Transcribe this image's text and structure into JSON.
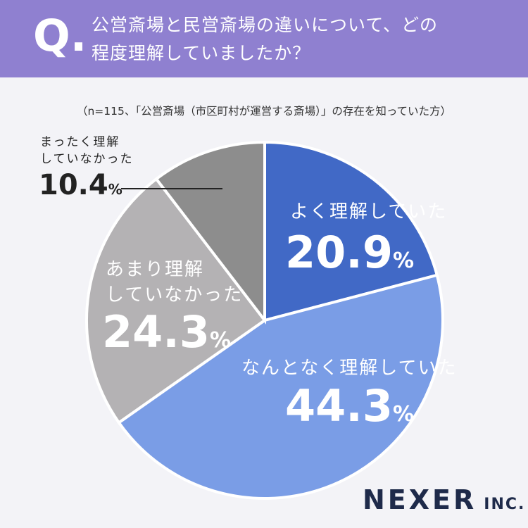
{
  "header": {
    "mark": "Q.",
    "question": "公営斎場と民営斎場の違いについて、どの\n程度理解していましたか？"
  },
  "chart_data": {
    "type": "pie",
    "subtitle": "（n=115、「公営斎場（市区町村が運営する斎場）」の存在を知っていた方）",
    "categories": [
      "よく理解していた",
      "なんとなく理解していた",
      "あまり理解\nしていなかった",
      "まったく理解\nしていなかった"
    ],
    "values": [
      20.9,
      44.3,
      24.3,
      10.4
    ],
    "value_labels": [
      "20.9%",
      "44.3%",
      "24.3%",
      "10.4%"
    ],
    "colors": [
      "#4169c6",
      "#7a9de6",
      "#b4b2b4",
      "#8d8d8d"
    ]
  },
  "logo": {
    "name": "NEXER",
    "suffix": "INC."
  }
}
